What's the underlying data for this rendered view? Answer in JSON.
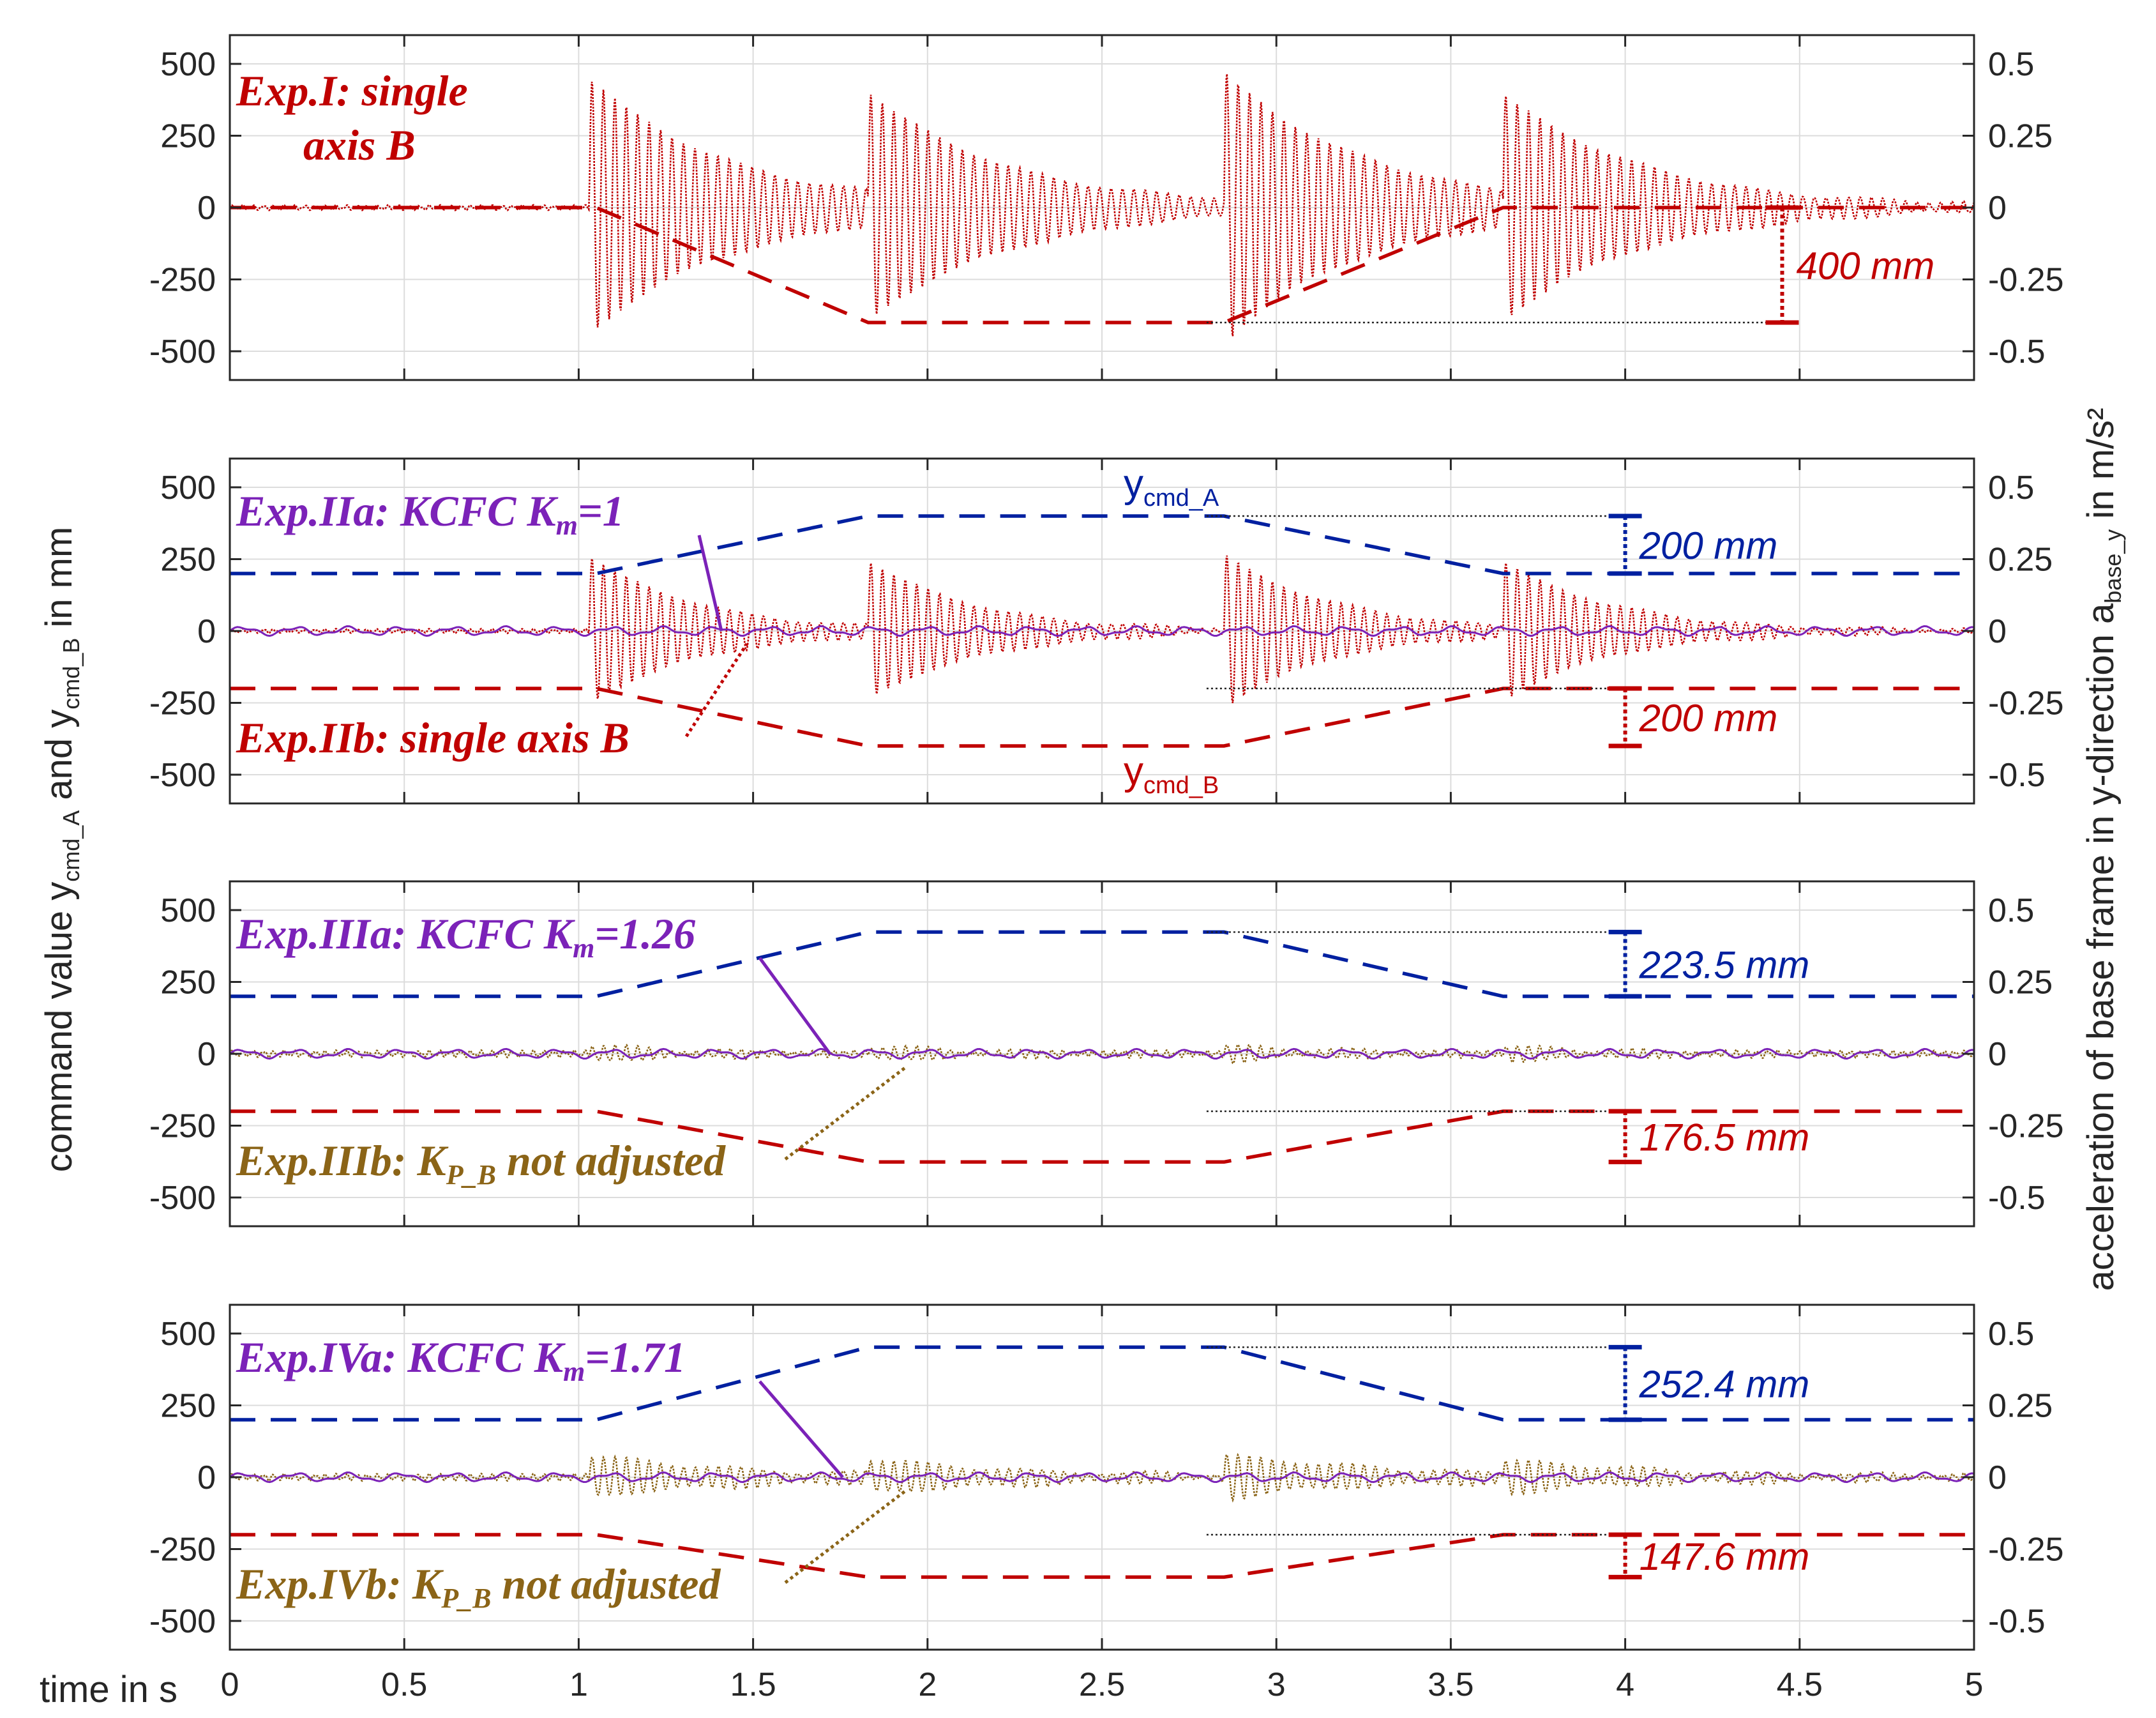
{
  "chart_data": {
    "type": "line",
    "left_axis_label": {
      "main": "command value y",
      "sub1": "cmd_A",
      "mid": " and y",
      "sub2": "cmd_B",
      "tail": " in mm"
    },
    "right_axis_label": {
      "main": "acceleration of base frame in y-direction a",
      "sub": "base_y",
      "tail": " in m/s²"
    },
    "x_label": "time in s",
    "x_ticks": [
      0,
      0.5,
      1,
      1.5,
      2,
      2.5,
      3,
      3.5,
      4,
      4.5,
      5
    ],
    "x_tick_labels": [
      "0",
      "0.5",
      "1",
      "1.5",
      "2",
      "2.5",
      "3",
      "3.5",
      "4",
      "4.5",
      "5"
    ],
    "xlim": [
      0,
      5
    ],
    "ylim_left": [
      -600,
      600
    ],
    "ylim_right": [
      -0.6,
      0.6
    ],
    "y_left_ticks": [
      "500",
      "250",
      "0",
      "-250",
      "-500"
    ],
    "y_right_ticks": [
      "0.5",
      "0.25",
      "0",
      "-0.25",
      "-0.5"
    ],
    "grid": true,
    "colors": {
      "red": "#c00000",
      "blue": "#0020a0",
      "purple": "#7b22b8",
      "brown": "#8b6417",
      "grid": "#dcdcdc",
      "axis": "#262626"
    },
    "panels": [
      {
        "name": "Exp.I",
        "y_cmd_A": null,
        "y_cmd_B": {
          "x": [
            0,
            1.05,
            1.83,
            2.85,
            3.65,
            5
          ],
          "y": [
            0,
            0,
            -400,
            -400,
            0,
            0
          ]
        },
        "accel_B": {
          "amp": 0.45,
          "bursts": [
            1.03,
            1.83,
            2.85,
            3.65
          ],
          "decay": 2.5,
          "noise": 0.006
        },
        "accel_A": null,
        "annotations": [
          {
            "text": "Exp.I: single",
            "text2": "axis B",
            "color": "red"
          }
        ],
        "dimension": {
          "label": "400 mm",
          "x": 4.45,
          "from": 0,
          "to": -400,
          "color": "red"
        },
        "tag_A": "",
        "tag_B": ""
      },
      {
        "name": "Exp.II",
        "y_cmd_A": {
          "x": [
            0,
            1.05,
            1.83,
            2.85,
            3.65,
            5
          ],
          "y": [
            200,
            200,
            400,
            400,
            200,
            200
          ]
        },
        "y_cmd_B": {
          "x": [
            0,
            1.05,
            1.83,
            2.85,
            3.65,
            5
          ],
          "y": [
            -200,
            -200,
            -400,
            -400,
            -200,
            -200
          ]
        },
        "accel_B": {
          "amp": 0.26,
          "bursts": [
            1.03,
            1.83,
            2.85,
            3.65
          ],
          "decay": 3.2,
          "noise": 0.005
        },
        "accel_A": {
          "amp": 0.012,
          "noise": 0.01
        },
        "annotations": [
          {
            "text": "Exp.IIa: KCFC K",
            "sub": "m",
            "tail": "=1",
            "color": "purple"
          },
          {
            "text": "Exp.IIb: single axis B",
            "color": "red"
          }
        ],
        "dimension_A": {
          "label": "200 mm",
          "x": 4.0,
          "from": 400,
          "to": 200,
          "color": "blue"
        },
        "dimension_B": {
          "label": "200 mm",
          "x": 4.0,
          "from": -200,
          "to": -400,
          "color": "red"
        },
        "tag_A": "cmd_A",
        "tag_B": "cmd_B"
      },
      {
        "name": "Exp.III",
        "y_cmd_A": {
          "x": [
            0,
            1.05,
            1.83,
            2.85,
            3.65,
            5
          ],
          "y": [
            200,
            200,
            423.5,
            423.5,
            200,
            200
          ]
        },
        "y_cmd_B": {
          "x": [
            0,
            1.05,
            1.83,
            2.85,
            3.65,
            5
          ],
          "y": [
            -200,
            -200,
            -376.5,
            -376.5,
            -200,
            -200
          ]
        },
        "accel_B": {
          "amp": 0.025,
          "bursts": [
            1.03,
            1.83,
            2.85,
            3.65
          ],
          "decay": 3.0,
          "noise": 0.008
        },
        "accel_A": {
          "amp": 0.012,
          "noise": 0.01
        },
        "annotations": [
          {
            "text": "Exp.IIIa: KCFC K",
            "sub": "m",
            "tail": "=1.26",
            "color": "purple"
          },
          {
            "text": "Exp.IIIb: K",
            "sub": "P_B",
            "tail": " not adjusted",
            "color": "brown"
          }
        ],
        "dimension_A": {
          "label": "223.5 mm",
          "x": 4.0,
          "from": 423.5,
          "to": 200,
          "color": "blue"
        },
        "dimension_B": {
          "label": "176.5 mm",
          "x": 4.0,
          "from": -200,
          "to": -376.5,
          "color": "red"
        },
        "tag_A": "",
        "tag_B": ""
      },
      {
        "name": "Exp.IV",
        "y_cmd_A": {
          "x": [
            0,
            1.05,
            1.83,
            2.85,
            3.65,
            5
          ],
          "y": [
            200,
            200,
            452.4,
            452.4,
            200,
            200
          ]
        },
        "y_cmd_B": {
          "x": [
            0,
            1.05,
            1.83,
            2.85,
            3.65,
            5
          ],
          "y": [
            -200,
            -200,
            -347.6,
            -347.6,
            -200,
            -200
          ]
        },
        "accel_B": {
          "amp": 0.07,
          "bursts": [
            1.03,
            1.83,
            2.85,
            3.65
          ],
          "decay": 2.0,
          "noise": 0.008
        },
        "accel_A": {
          "amp": 0.012,
          "noise": 0.01
        },
        "annotations": [
          {
            "text": "Exp.IVa: KCFC K",
            "sub": "m",
            "tail": "=1.71",
            "color": "purple"
          },
          {
            "text": "Exp.IVb: K",
            "sub": "P_B",
            "tail": " not adjusted",
            "color": "brown"
          }
        ],
        "dimension_A": {
          "label": "252.4 mm",
          "x": 4.0,
          "from": 452.4,
          "to": 200,
          "color": "blue"
        },
        "dimension_B": {
          "label": "147.6 mm",
          "x": 4.0,
          "from": -200,
          "to": -347.6,
          "color": "red"
        },
        "tag_A": "",
        "tag_B": ""
      }
    ]
  }
}
